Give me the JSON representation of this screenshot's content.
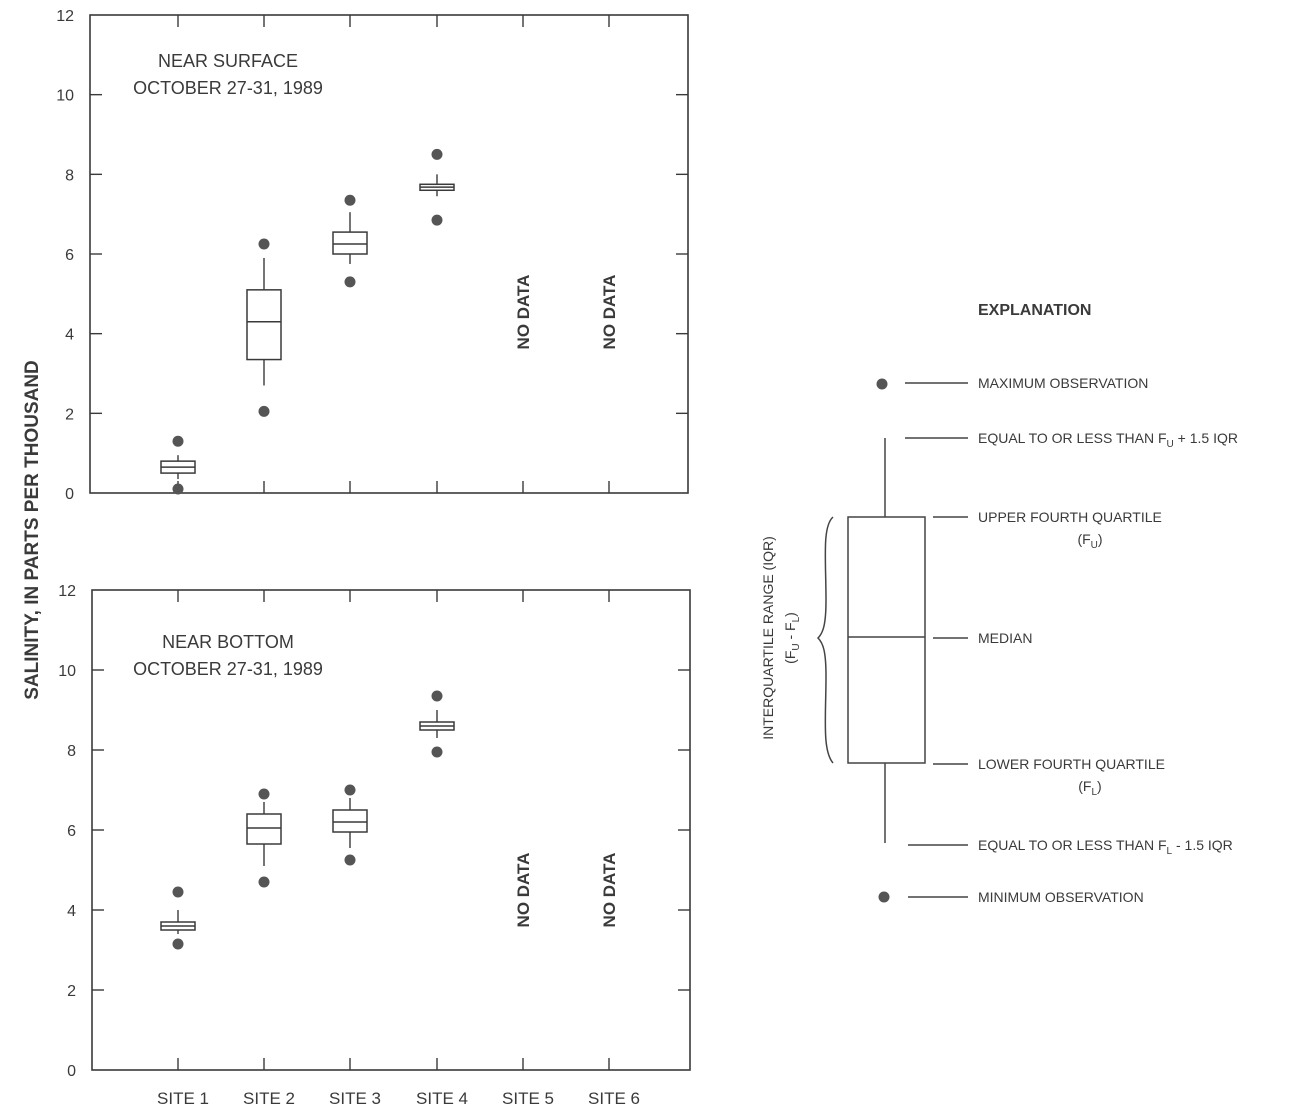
{
  "chart_data": {
    "ylabel": "SALINITY, IN PARTS PER THOUSAND",
    "categories": [
      "SITE 1",
      "SITE 2",
      "SITE 3",
      "SITE 4",
      "SITE 5",
      "SITE 6"
    ],
    "ylim": [
      0,
      12
    ],
    "yticks": [
      "0",
      "2",
      "4",
      "6",
      "8",
      "10",
      "12"
    ],
    "no_data_label": "NO DATA",
    "panels": [
      {
        "type": "boxplot",
        "title_line1": "NEAR SURFACE",
        "title_line2": "OCTOBER 27-31, 1989",
        "boxes": [
          {
            "category": "SITE 1",
            "min": 0.1,
            "whisker_low": 0.35,
            "q1": 0.5,
            "median": 0.65,
            "q3": 0.8,
            "whisker_high": 0.95,
            "max": 1.3
          },
          {
            "category": "SITE 2",
            "min": 2.05,
            "whisker_low": 2.7,
            "q1": 3.35,
            "median": 4.3,
            "q3": 5.1,
            "whisker_high": 5.9,
            "max": 6.25
          },
          {
            "category": "SITE 3",
            "min": 5.3,
            "whisker_low": 5.75,
            "q1": 6.0,
            "median": 6.25,
            "q3": 6.55,
            "whisker_high": 7.05,
            "max": 7.35
          },
          {
            "category": "SITE 4",
            "min": 6.85,
            "whisker_low": 7.45,
            "q1": 7.6,
            "median": 7.68,
            "q3": 7.75,
            "whisker_high": 8.0,
            "max": 8.5
          }
        ],
        "no_data": [
          "SITE 5",
          "SITE 6"
        ]
      },
      {
        "type": "boxplot",
        "title_line1": "NEAR BOTTOM",
        "title_line2": "OCTOBER 27-31, 1989",
        "boxes": [
          {
            "category": "SITE 1",
            "min": 3.15,
            "whisker_low": 3.4,
            "q1": 3.5,
            "median": 3.6,
            "q3": 3.7,
            "whisker_high": 4.0,
            "max": 4.45
          },
          {
            "category": "SITE 2",
            "min": 4.7,
            "whisker_low": 5.1,
            "q1": 5.65,
            "median": 6.05,
            "q3": 6.4,
            "whisker_high": 6.7,
            "max": 6.9
          },
          {
            "category": "SITE 3",
            "min": 5.25,
            "whisker_low": 5.55,
            "q1": 5.95,
            "median": 6.2,
            "q3": 6.5,
            "whisker_high": 6.8,
            "max": 7.0
          },
          {
            "category": "SITE 4",
            "min": 7.95,
            "whisker_low": 8.3,
            "q1": 8.5,
            "median": 8.6,
            "q3": 8.7,
            "whisker_high": 9.0,
            "max": 9.35
          }
        ],
        "no_data": [
          "SITE 5",
          "SITE 6"
        ]
      }
    ]
  },
  "explanation": {
    "title": "EXPLANATION",
    "maximum": "MAXIMUM OBSERVATION",
    "upper_whisker_text": "EQUAL TO OR LESS THAN F",
    "upper_whisker_sub": "U",
    "upper_whisker_tail": " + 1.5 IQR",
    "upper_quartile": "UPPER FOURTH QUARTILE",
    "upper_quartile_paren_open": "(F",
    "upper_quartile_sub": "U",
    "upper_quartile_paren_close": ")",
    "median": "MEDIAN",
    "lower_quartile": "LOWER FOURTH QUARTILE",
    "lower_quartile_paren_open": "(F",
    "lower_quartile_sub": "L",
    "lower_quartile_paren_close": ")",
    "lower_whisker_text": "EQUAL TO OR LESS THAN F",
    "lower_whisker_sub": "L",
    "lower_whisker_tail": " - 1.5 IQR",
    "minimum": "MINIMUM OBSERVATION",
    "iqr_label": "INTERQUARTILE RANGE (IQR)",
    "iqr_formula": "(F",
    "iqr_formula_sub1": "U",
    "iqr_formula_mid": " - F",
    "iqr_formula_sub2": "L",
    "iqr_formula_end": ")"
  },
  "colors": {
    "ink": "#3a3a3a",
    "dot": "#555555"
  }
}
